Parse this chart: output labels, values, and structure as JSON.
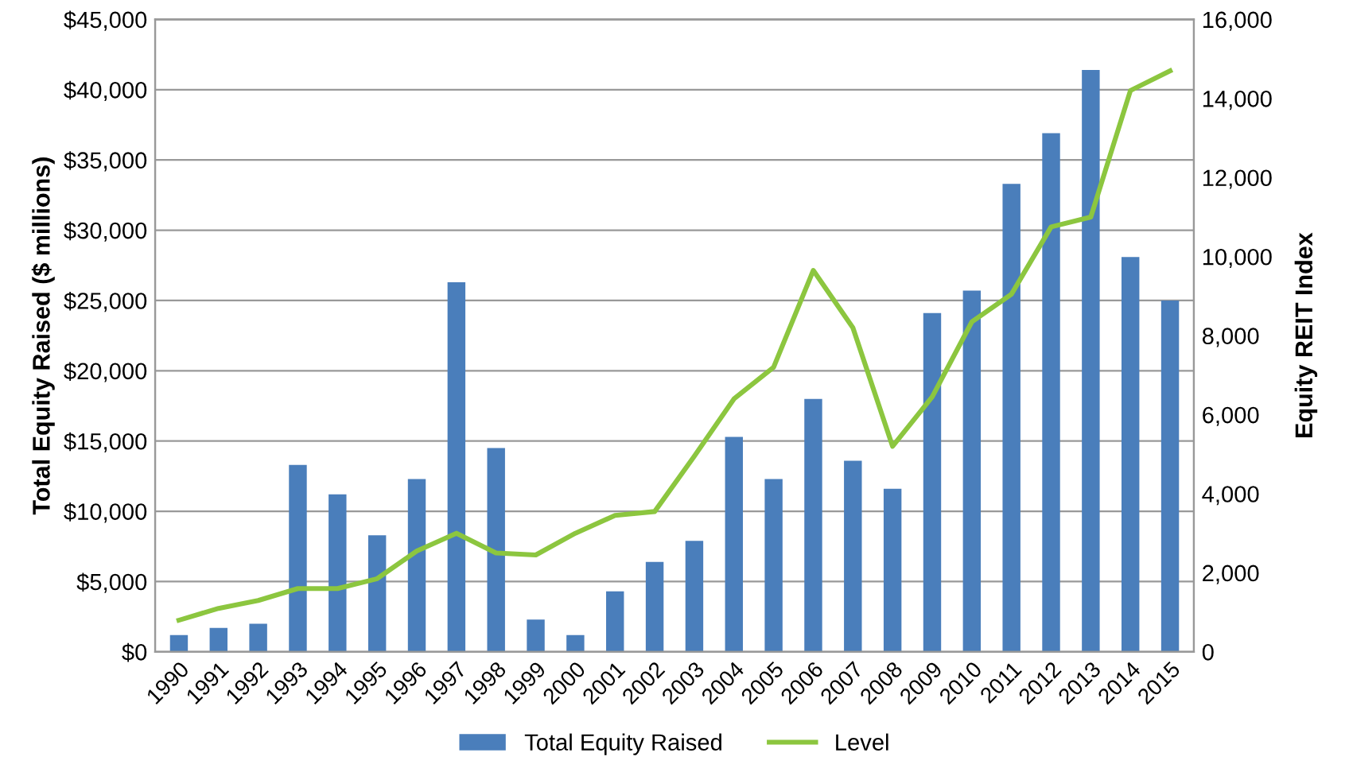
{
  "chart_data": {
    "type": "bar",
    "ylabel": "Total Equity Raised ($ millions)",
    "y2label": "Equity REIT Index",
    "categories": [
      "1990",
      "1991",
      "1992",
      "1993",
      "1994",
      "1995",
      "1996",
      "1997",
      "1998",
      "1999",
      "2000",
      "2001",
      "2002",
      "2003",
      "2004",
      "2005",
      "2006",
      "2007",
      "2008",
      "2009",
      "2010",
      "2011",
      "2012",
      "2013",
      "2014",
      "2015"
    ],
    "series": [
      {
        "name": "Total Equity Raised",
        "color": "#4a7ebb",
        "values": [
          1200,
          1700,
          2000,
          13300,
          11200,
          8300,
          12300,
          26300,
          14500,
          2300,
          1200,
          4300,
          6400,
          7900,
          15300,
          12300,
          18000,
          13600,
          11600,
          24100,
          25700,
          33300,
          36900,
          41400,
          28100,
          25000
        ]
      },
      {
        "name": "Level",
        "type": "line",
        "axis": "y2",
        "color": "#8cc63f",
        "values": [
          800,
          1100,
          1300,
          1600,
          1600,
          1850,
          2550,
          3000,
          2500,
          2450,
          3000,
          3450,
          3550,
          4950,
          6400,
          7200,
          9650,
          8200,
          5200,
          6450,
          8350,
          9050,
          10750,
          11000,
          14200,
          14700
        ]
      }
    ],
    "ylim": [
      0,
      45000
    ],
    "yticks": [
      {
        "value": 0,
        "label": "$0"
      },
      {
        "value": 5000,
        "label": "$5,000"
      },
      {
        "value": 10000,
        "label": "$10,000"
      },
      {
        "value": 15000,
        "label": "$15,000"
      },
      {
        "value": 20000,
        "label": "$20,000"
      },
      {
        "value": 25000,
        "label": "$25,000"
      },
      {
        "value": 30000,
        "label": "$30,000"
      },
      {
        "value": 35000,
        "label": "$35,000"
      },
      {
        "value": 40000,
        "label": "$40,000"
      },
      {
        "value": 45000,
        "label": "$45,000"
      }
    ],
    "y2lim": [
      0,
      16000
    ],
    "y2ticks": [
      0,
      {
        "value": 2000,
        "label": "2,000"
      },
      {
        "value": 4000,
        "label": "4,000"
      },
      {
        "value": 6000,
        "label": "6,000"
      },
      {
        "value": 8000,
        "label": "8,000"
      },
      {
        "value": 10000,
        "label": "10,000"
      },
      {
        "value": 12000,
        "label": "12,000"
      },
      {
        "value": 14000,
        "label": "14,000"
      },
      {
        "value": 16000,
        "label": "16,000"
      }
    ],
    "grid": "y",
    "legend": "bottom",
    "marker": "none",
    "line_style": "solid"
  }
}
